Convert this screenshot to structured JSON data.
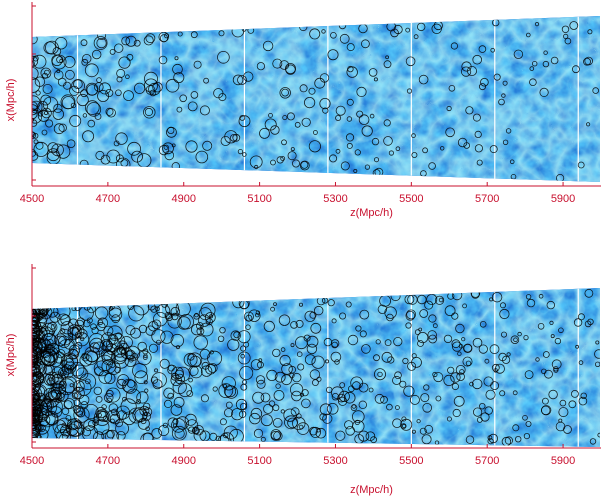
{
  "colors": {
    "axis": "#c8102e",
    "field_dark": "#0a2fb0",
    "field_mid": "#1f5fe0",
    "field_light": "#3aa3ff",
    "filament": "#9af0e8",
    "halo": "#000000",
    "seam": "#ffffff"
  },
  "chart_data": [
    {
      "type": "scatter",
      "title": "",
      "xlabel": "z(Mpc/h)",
      "ylabel": "x(Mpc/h)",
      "xlim": [
        4500,
        6000
      ],
      "x_ticks": [
        4500,
        4700,
        4900,
        5100,
        5300,
        5500,
        5700,
        5900
      ],
      "tick_labels": [
        "4500",
        "4700",
        "4900",
        "5100",
        "5300",
        "5500",
        "5700",
        "5900"
      ],
      "background": "density-field slab (blue with bright filaments)",
      "slab_seams_z": [
        4620,
        4840,
        5060,
        5280,
        5500,
        5720,
        5940
      ],
      "markers": "open black circles (halos)",
      "marker_density": "moderate",
      "grid": false
    },
    {
      "type": "scatter",
      "title": "",
      "xlabel": "z(Mpc/h)",
      "ylabel": "x(Mpc/h)",
      "xlim": [
        4500,
        6000
      ],
      "x_ticks": [
        4500,
        4700,
        4900,
        5100,
        5300,
        5500,
        5700,
        5900
      ],
      "tick_labels": [
        "4500",
        "4700",
        "4900",
        "5100",
        "5300",
        "5500",
        "5700",
        "5900"
      ],
      "background": "density-field slab (blue with bright filaments)",
      "slab_seams_z": [
        4620,
        4840,
        5060,
        5280,
        5500,
        5720,
        5940
      ],
      "markers": "open black circles (halos)",
      "marker_density": "high",
      "grid": false
    }
  ]
}
